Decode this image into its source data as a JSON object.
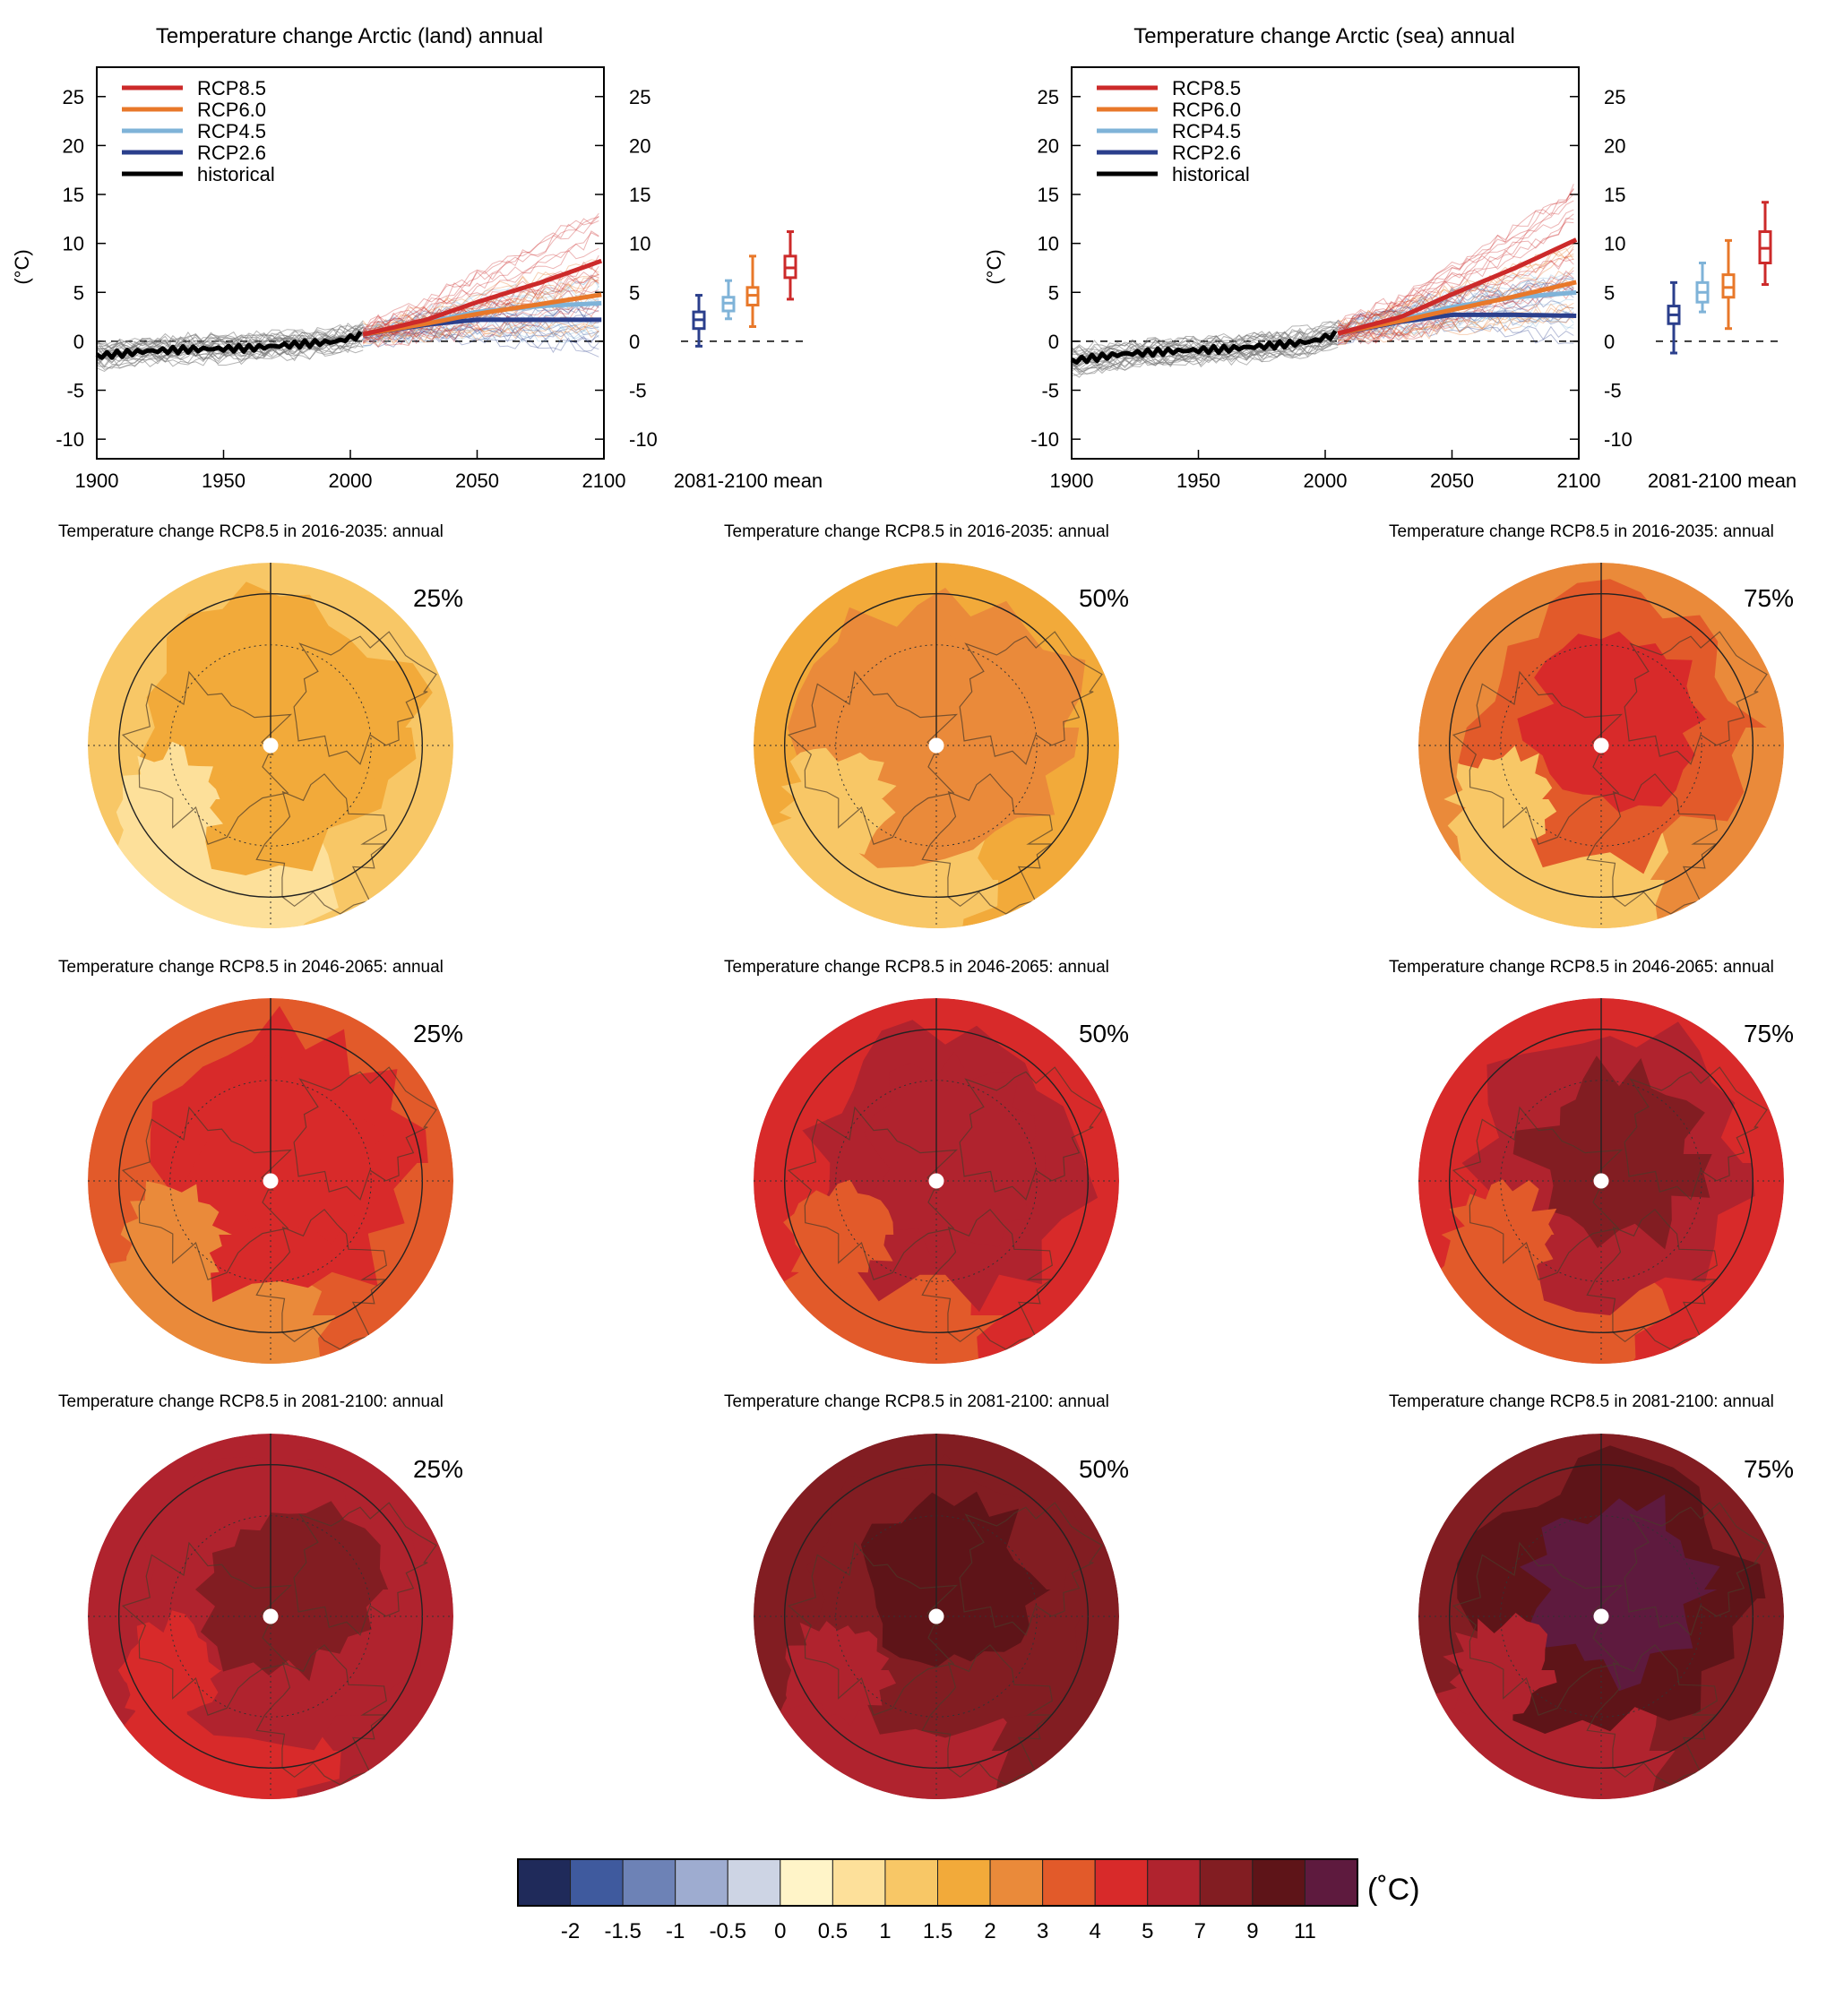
{
  "time_series": [
    {
      "title": "Temperature change Arctic (land) annual",
      "ylabel": "(°C)",
      "x_ticks": [
        "1900",
        "1950",
        "2000",
        "2050",
        "2100"
      ],
      "y_ticks": [
        "25",
        "20",
        "15",
        "10",
        "5",
        "0",
        "-5",
        "-10"
      ],
      "boxplot_label": "2081-2100 mean"
    },
    {
      "title": "Temperature change Arctic (sea) annual",
      "ylabel": "(°C)",
      "x_ticks": [
        "1900",
        "1950",
        "2000",
        "2050",
        "2100"
      ],
      "y_ticks": [
        "25",
        "20",
        "15",
        "10",
        "5",
        "0",
        "-5",
        "-10"
      ],
      "boxplot_label": "2081-2100 mean"
    }
  ],
  "legend": [
    {
      "name": "RCP8.5",
      "color": "#cc2a2a"
    },
    {
      "name": "RCP6.0",
      "color": "#e8782a"
    },
    {
      "name": "RCP4.5",
      "color": "#7fb3d8"
    },
    {
      "name": "RCP2.6",
      "color": "#2b3f8c"
    },
    {
      "name": "historical",
      "color": "#000000"
    }
  ],
  "map_titles": [
    "Temperature change RCP8.5 in 2016-2035: annual",
    "Temperature change RCP8.5 in 2016-2035: annual",
    "Temperature change RCP8.5 in 2016-2035: annual",
    "Temperature change RCP8.5 in 2046-2065: annual",
    "Temperature change RCP8.5 in 2046-2065: annual",
    "Temperature change RCP8.5 in 2046-2065: annual",
    "Temperature change RCP8.5 in 2081-2100: annual",
    "Temperature change RCP8.5 in 2081-2100: annual",
    "Temperature change RCP8.5 in 2081-2100: annual"
  ],
  "map_percentiles": [
    "25%",
    "50%",
    "75%",
    "25%",
    "50%",
    "75%",
    "25%",
    "50%",
    "75%"
  ],
  "colorbar": {
    "ticks": [
      "-2",
      "-1.5",
      "-1",
      "-0.5",
      "0",
      "0.5",
      "1",
      "1.5",
      "2",
      "3",
      "4",
      "5",
      "7",
      "9",
      "11"
    ],
    "colors": [
      "#1f2a5a",
      "#3f5a9e",
      "#6d82b6",
      "#9eacd0",
      "#cdd4e4",
      "#fff4c8",
      "#fde09a",
      "#f8c766",
      "#f2aa3a",
      "#ea8a3a",
      "#e25a2a",
      "#d82a2a",
      "#b0232e",
      "#821d22",
      "#5e1418",
      "#5e1a3e"
    ],
    "unit": "(˚C)"
  },
  "chart_data": [
    {
      "type": "line",
      "title": "Temperature change Arctic (land) annual",
      "ylabel": "(°C)",
      "xlim": [
        1900,
        2100
      ],
      "ylim": [
        -12,
        28
      ],
      "series": [
        {
          "name": "historical",
          "x": [
            1900,
            1920,
            1940,
            1960,
            1980,
            1995,
            2005
          ],
          "y": [
            -1.5,
            -1.0,
            -0.8,
            -0.7,
            -0.3,
            0.0,
            0.7
          ]
        },
        {
          "name": "RCP2.6",
          "x": [
            2005,
            2030,
            2050,
            2075,
            2100
          ],
          "y": [
            0.7,
            1.7,
            2.2,
            2.2,
            2.2
          ]
        },
        {
          "name": "RCP4.5",
          "x": [
            2005,
            2030,
            2050,
            2075,
            2100
          ],
          "y": [
            0.7,
            1.9,
            3.0,
            3.6,
            3.9
          ]
        },
        {
          "name": "RCP6.0",
          "x": [
            2005,
            2030,
            2050,
            2075,
            2100
          ],
          "y": [
            0.7,
            1.8,
            2.8,
            3.8,
            4.8
          ]
        },
        {
          "name": "RCP8.5",
          "x": [
            2005,
            2030,
            2050,
            2075,
            2100
          ],
          "y": [
            0.7,
            2.2,
            4.0,
            6.0,
            8.3
          ]
        }
      ],
      "boxplots_2081_2100_mean": [
        {
          "name": "RCP2.6",
          "min": -0.5,
          "q1": 1.3,
          "median": 2.2,
          "q3": 3.0,
          "max": 4.7
        },
        {
          "name": "RCP4.5",
          "min": 2.3,
          "q1": 3.1,
          "median": 3.9,
          "q3": 4.5,
          "max": 6.2
        },
        {
          "name": "RCP6.0",
          "min": 1.5,
          "q1": 3.7,
          "median": 4.7,
          "q3": 5.5,
          "max": 8.7
        },
        {
          "name": "RCP8.5",
          "min": 4.3,
          "q1": 6.5,
          "median": 7.5,
          "q3": 8.7,
          "max": 11.2
        }
      ]
    },
    {
      "type": "line",
      "title": "Temperature change Arctic (sea) annual",
      "ylabel": "(°C)",
      "xlim": [
        1900,
        2100
      ],
      "ylim": [
        -12,
        28
      ],
      "series": [
        {
          "name": "historical",
          "x": [
            1900,
            1920,
            1940,
            1960,
            1980,
            1995,
            2005
          ],
          "y": [
            -2.0,
            -1.3,
            -1.0,
            -0.8,
            -0.4,
            0.0,
            0.8
          ]
        },
        {
          "name": "RCP2.6",
          "x": [
            2005,
            2030,
            2050,
            2075,
            2100
          ],
          "y": [
            0.8,
            2.0,
            2.7,
            2.7,
            2.6
          ]
        },
        {
          "name": "RCP4.5",
          "x": [
            2005,
            2030,
            2050,
            2075,
            2100
          ],
          "y": [
            0.8,
            2.2,
            3.5,
            4.5,
            5.0
          ]
        },
        {
          "name": "RCP6.0",
          "x": [
            2005,
            2030,
            2050,
            2075,
            2100
          ],
          "y": [
            0.8,
            2.1,
            3.2,
            4.6,
            6.1
          ]
        },
        {
          "name": "RCP8.5",
          "x": [
            2005,
            2030,
            2050,
            2075,
            2100
          ],
          "y": [
            0.8,
            2.5,
            4.8,
            7.5,
            10.5
          ]
        }
      ],
      "boxplots_2081_2100_mean": [
        {
          "name": "RCP2.6",
          "min": -1.2,
          "q1": 1.8,
          "median": 2.7,
          "q3": 3.6,
          "max": 6.0
        },
        {
          "name": "RCP4.5",
          "min": 3.0,
          "q1": 4.0,
          "median": 5.0,
          "q3": 6.0,
          "max": 8.0
        },
        {
          "name": "RCP6.0",
          "min": 1.3,
          "q1": 4.5,
          "median": 5.5,
          "q3": 6.8,
          "max": 10.3
        },
        {
          "name": "RCP8.5",
          "min": 5.8,
          "q1": 8.0,
          "median": 9.5,
          "q3": 11.2,
          "max": 14.2
        }
      ]
    }
  ]
}
